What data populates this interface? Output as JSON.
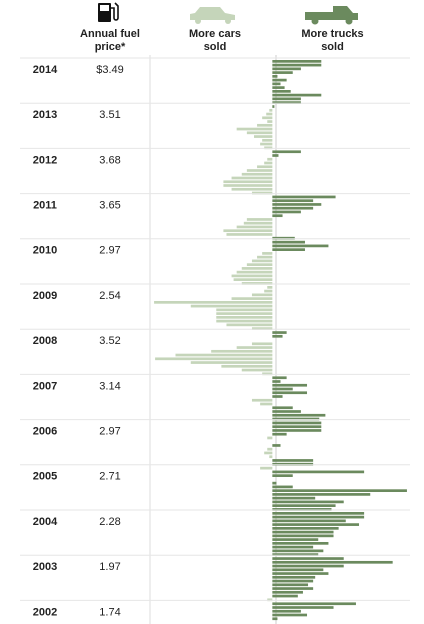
{
  "chart_data": {
    "type": "bar",
    "orientation": "horizontal",
    "header_price": "Annual fuel price*",
    "header_cars": "More cars sold",
    "header_trucks": "More trucks sold",
    "categories": [
      "2014",
      "2013",
      "2012",
      "2011",
      "2010",
      "2009",
      "2008",
      "2007",
      "2006",
      "2005",
      "2004",
      "2003",
      "2002"
    ],
    "price_labels": [
      "$3.49",
      "3.51",
      "3.68",
      "3.65",
      "2.97",
      "2.54",
      "3.52",
      "3.14",
      "2.97",
      "2.71",
      "2.28",
      "1.97",
      "1.74"
    ],
    "monthly_values": [
      [
        48,
        48,
        28,
        20,
        5,
        14,
        8,
        12,
        18,
        48,
        28,
        28
      ],
      [
        2,
        -3,
        -6,
        -10,
        -5,
        -15,
        -35,
        -25,
        -18,
        -10,
        -12,
        -8
      ],
      [
        28,
        6,
        -5,
        -8,
        -15,
        -25,
        -30,
        -40,
        -48,
        -48,
        -40,
        -20
      ],
      [
        62,
        40,
        48,
        40,
        28,
        10,
        -25,
        -28,
        -35,
        -48,
        -45,
        22
      ],
      [
        32,
        55,
        32,
        -10,
        -15,
        -20,
        -25,
        -30,
        -35,
        -40,
        -38,
        -30
      ],
      [
        -5,
        -8,
        -20,
        -40,
        -116,
        -80,
        -55,
        -55,
        -55,
        -55,
        -45,
        -20
      ],
      [
        14,
        10,
        0,
        -20,
        -35,
        -60,
        -95,
        -115,
        -80,
        -50,
        -30,
        -10
      ],
      [
        14,
        8,
        34,
        20,
        34,
        10,
        -20,
        -12,
        20,
        28,
        52,
        46
      ],
      [
        48,
        48,
        48,
        14,
        -5,
        0,
        8,
        -5,
        -8,
        -3,
        40,
        40
      ],
      [
        -12,
        90,
        20,
        0,
        4,
        20,
        132,
        96,
        42,
        70,
        62,
        58
      ],
      [
        90,
        90,
        72,
        85,
        65,
        60,
        60,
        45,
        55,
        40,
        50,
        45
      ],
      [
        70,
        118,
        70,
        50,
        55,
        42,
        40,
        35,
        40,
        30,
        25,
        -5
      ],
      [
        82,
        60,
        28,
        34,
        5
      ]
    ],
    "xlim": [
      -120,
      135
    ],
    "positive_color": "#6b8a5e",
    "negative_color": "#c5d5ba"
  }
}
